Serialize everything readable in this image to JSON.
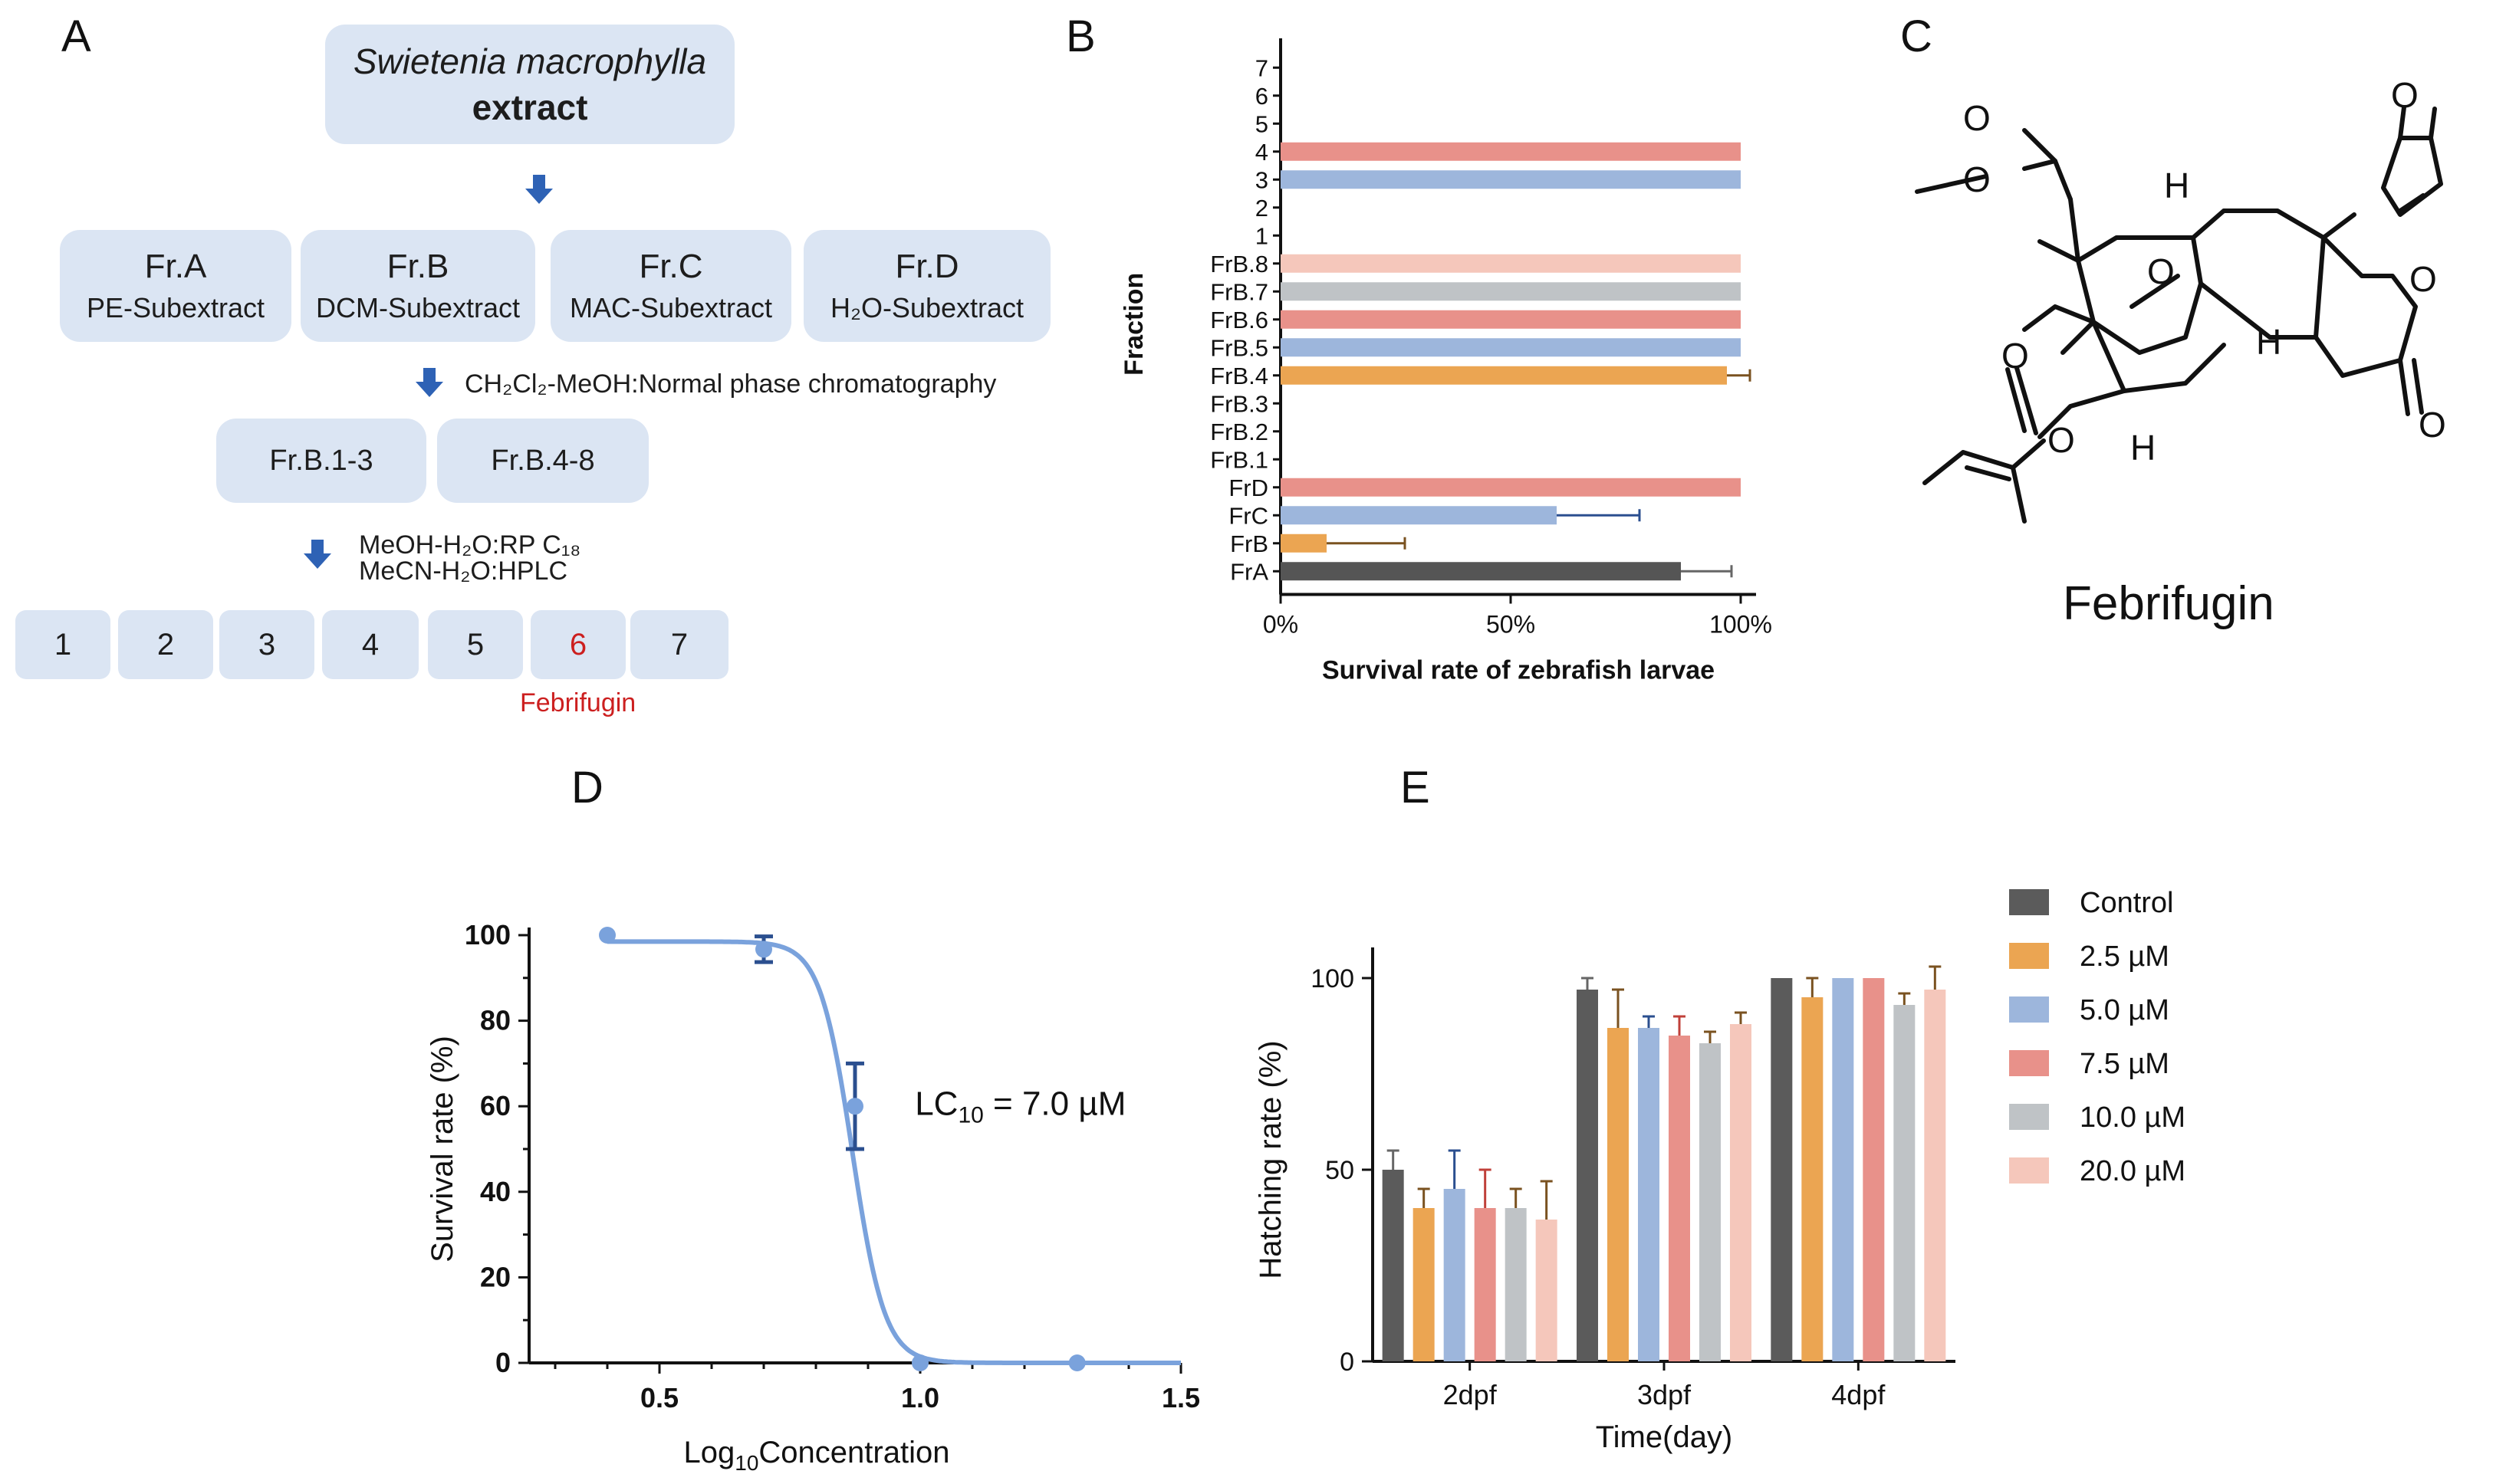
{
  "panels": {
    "A": "A",
    "B": "B",
    "C": "C",
    "D": "D",
    "E": "E"
  },
  "flow": {
    "top": {
      "line1": "Swietenia macrophylla",
      "line2": "extract"
    },
    "fractions": [
      {
        "name": "Fr.A",
        "sub": "PE-Subextract"
      },
      {
        "name": "Fr.B",
        "sub": "DCM-Subextract"
      },
      {
        "name": "Fr.C",
        "sub": "MAC-Subextract"
      },
      {
        "name": "Fr.D",
        "sub": "H₂O-Subextract"
      }
    ],
    "step1": "CH₂Cl₂-MeOH:Normal phase chromatography",
    "sub_fractions": [
      "Fr.B.1-3",
      "Fr.B.4-8"
    ],
    "step2a": "MeOH-H₂O:RP C₁₈",
    "step2b": "MeCN-H₂O:HPLC",
    "final": [
      "1",
      "2",
      "3",
      "4",
      "5",
      "6",
      "7"
    ],
    "highlight_label": "Febrifugin",
    "highlight_color": "#cc1f1f"
  },
  "compound": {
    "name": "Febrifugin",
    "atoms": {
      "o_furan": "O",
      "o1": "O",
      "o2": "O",
      "o_bridge": "O",
      "o_ring": "O",
      "o3": "O",
      "o4": "O",
      "o5": "O",
      "h1": "H",
      "h2": "H",
      "h3": "H"
    }
  },
  "chart_data": [
    {
      "panel": "B",
      "type": "bar",
      "orientation": "horizontal",
      "ylabel": "Fraction",
      "xlabel": "Survival  rate of zebrafish larvae",
      "xlim": [
        0,
        100
      ],
      "xticks": [
        "0%",
        "50%",
        "100%"
      ],
      "categories": [
        "7",
        "6",
        "5",
        "4",
        "3",
        "2",
        "1",
        "FrB.8",
        "FrB.7",
        "FrB.6",
        "FrB.5",
        "FrB.4",
        "FrB.3",
        "FrB.2",
        "FrB.1",
        "FrD",
        "FrC",
        "FrB",
        "FrA"
      ],
      "values": [
        0,
        0,
        0,
        100,
        100,
        0,
        0,
        100,
        100,
        100,
        100,
        97,
        0,
        0,
        0,
        100,
        60,
        10,
        87
      ],
      "errors": [
        0,
        0,
        0,
        0,
        0,
        0,
        0,
        0,
        0,
        0,
        0,
        5,
        0,
        0,
        0,
        0,
        18,
        17,
        11
      ],
      "colors": [
        "#e8918a",
        "#e8918a",
        "#e8918a",
        "#e8918a",
        "#9db6dc",
        "#9db6dc",
        "#9db6dc",
        "#f5c7bb",
        "#bfc3c6",
        "#e8918a",
        "#9db6dc",
        "#eba552",
        "#eba552",
        "#eba552",
        "#eba552",
        "#e8918a",
        "#9db6dc",
        "#eba552",
        "#555555"
      ]
    },
    {
      "panel": "D",
      "type": "line",
      "xlabel": "Log10Concentration",
      "xlabel_main": "Log",
      "xlabel_sub": "10",
      "xlabel_rest": "Concentration",
      "ylabel": "Survival rate (%)",
      "xlim": [
        0.2,
        1.5
      ],
      "ylim": [
        0,
        100
      ],
      "xticks": [
        "0.5",
        "1.0",
        "1.5"
      ],
      "yticks": [
        "0",
        "20",
        "40",
        "60",
        "80",
        "100"
      ],
      "points": [
        {
          "x": 0.4,
          "y": 100,
          "err": 0
        },
        {
          "x": 0.7,
          "y": 96.7,
          "err": 3
        },
        {
          "x": 0.875,
          "y": 60,
          "err": 10
        },
        {
          "x": 1.0,
          "y": 0,
          "err": 0
        },
        {
          "x": 1.301,
          "y": 0,
          "err": 0
        }
      ],
      "fit": {
        "top": 98.5,
        "bottom": 0,
        "logEC50": 0.87,
        "hill": -14
      },
      "annotation": {
        "pre": "LC",
        "sub": "10",
        "post": " = 7.0 µM"
      },
      "line_color": "#7aa2dc",
      "err_color": "#2b4f8f"
    },
    {
      "panel": "E",
      "type": "bar",
      "xlabel": "Time(day)",
      "ylabel": "Hatching rate (%)",
      "ylim": [
        0,
        100
      ],
      "yticks": [
        "0",
        "50",
        "100"
      ],
      "categories": [
        "2dpf",
        "3dpf",
        "4dpf"
      ],
      "series": [
        {
          "name": "Control",
          "color": "#5b5b5b",
          "values": [
            50,
            97,
            100
          ],
          "errors": [
            5,
            3,
            0
          ]
        },
        {
          "name": "  2.5 µM",
          "color": "#eba552",
          "values": [
            40,
            87,
            95
          ],
          "errors": [
            5,
            10,
            5
          ]
        },
        {
          "name": "  5.0 µM",
          "color": "#9db6dc",
          "values": [
            45,
            87,
            100
          ],
          "errors": [
            10,
            3,
            0
          ]
        },
        {
          "name": "  7.5 µM",
          "color": "#e8918a",
          "values": [
            40,
            85,
            100
          ],
          "errors": [
            10,
            5,
            0
          ]
        },
        {
          "name": "10.0 µM",
          "color": "#bfc3c6",
          "values": [
            40,
            83,
            93
          ],
          "errors": [
            5,
            3,
            3
          ]
        },
        {
          "name": "20.0 µM",
          "color": "#f5c7bb",
          "values": [
            37,
            88,
            97
          ],
          "errors": [
            10,
            3,
            6
          ]
        }
      ]
    }
  ]
}
